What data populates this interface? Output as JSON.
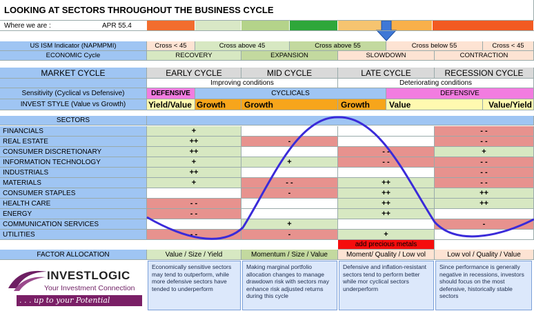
{
  "title": "LOOKING AT SECTORS THROUGHOUT THE BUSINESS CYCLE",
  "where_label": "Where we are :",
  "where_value": "APR 55.4",
  "indicator_colors": [
    "#f26d2e",
    "#d9e8c6",
    "#b4d38a",
    "#2ea73a",
    "#f6c470",
    "#f9b04a",
    "#f25a22"
  ],
  "ism": {
    "label": "US ISM Indicator (NAPMPMI)",
    "cells": [
      "Cross < 45",
      "Cross above 45",
      "Cross above 55",
      "Cross below 55",
      "Cross < 45"
    ]
  },
  "economic": {
    "label": "ECONOMIC Cycle",
    "cells": [
      "RECOVERY",
      "EXPANSION",
      "SLOWDOWN",
      "CONTRACTION"
    ]
  },
  "market": {
    "label": "MARKET CYCLE",
    "cells": [
      "EARLY CYCLE",
      "MID CYCLE",
      "LATE CYCLE",
      "RECESSION CYCLE"
    ]
  },
  "conditions": {
    "improving": "Improving conditions",
    "deteriorating": "Deteriorating conditions"
  },
  "sensitivity": {
    "label": "Sensitivity (Cyclical vs Defensive)",
    "defensive1": "DEFENSIVE",
    "cyclicals": "CYCLICALS",
    "defensive2": "DEFENSIVE"
  },
  "invest": {
    "label": "INVEST STYLE (Value vs Growth)",
    "cells": [
      "Yield/Value",
      "Growth",
      "Growth",
      "Growth",
      "Value",
      "Value/Yield"
    ]
  },
  "sectors_header": "SECTORS",
  "sectors": [
    {
      "name": "FINANCIALS",
      "vals": [
        "+",
        "",
        "",
        "- -"
      ]
    },
    {
      "name": "REAL ESTATE",
      "vals": [
        "++",
        "-",
        "",
        "- -"
      ]
    },
    {
      "name": "CONSUMER DISCRETIONARY",
      "vals": [
        "++",
        "",
        "- -",
        "+"
      ]
    },
    {
      "name": "INFORMATION TECHNOLOGY",
      "vals": [
        "+",
        "+",
        "- -",
        "- -"
      ]
    },
    {
      "name": "INDUSTRIALS",
      "vals": [
        "++",
        "",
        "",
        "- -"
      ]
    },
    {
      "name": "MATERIALS",
      "vals": [
        "+",
        "- -",
        "++",
        "- -"
      ]
    },
    {
      "name": "CONSUMER STAPLES",
      "vals": [
        "",
        "-",
        "++",
        "++"
      ]
    },
    {
      "name": "HEALTH CARE",
      "vals": [
        "- -",
        "",
        "++",
        "++"
      ]
    },
    {
      "name": "ENERGY",
      "vals": [
        "- -",
        "",
        "++",
        ""
      ]
    },
    {
      "name": "COMMUNICATION SERVICES",
      "vals": [
        "",
        "+",
        "",
        "-"
      ]
    },
    {
      "name": "UTILITIES",
      "vals": [
        "- -",
        "-",
        "+",
        ""
      ]
    }
  ],
  "precious_metals": "add precious metals",
  "factor": {
    "label": "FACTOR ALLOCATION",
    "cells": [
      "Value / Size / Yield",
      "Momentum / Size / Value",
      "Moment/ Quality / Low vol",
      "Low vol / Quality / Value"
    ]
  },
  "notes": [
    "Economically sensitive sectors may tend to outperform, while more defensive sectors have tended to underperform",
    "Making marginal portfolio allocation changes to manage drawdown risk with sectors may enhance risk adjusted returns during this cycle",
    "Defensive and inflation-resistant sectors tend to perform better while mor cyclical sectors underperform",
    "Since performance is generally negative in recessions, investors should focus on the most defensive, historically stable sectors"
  ],
  "logo": {
    "brand": "INVESTLOGIC",
    "tagline": "Your Investment Connection",
    "slogan": ". . . up to your Potential"
  }
}
